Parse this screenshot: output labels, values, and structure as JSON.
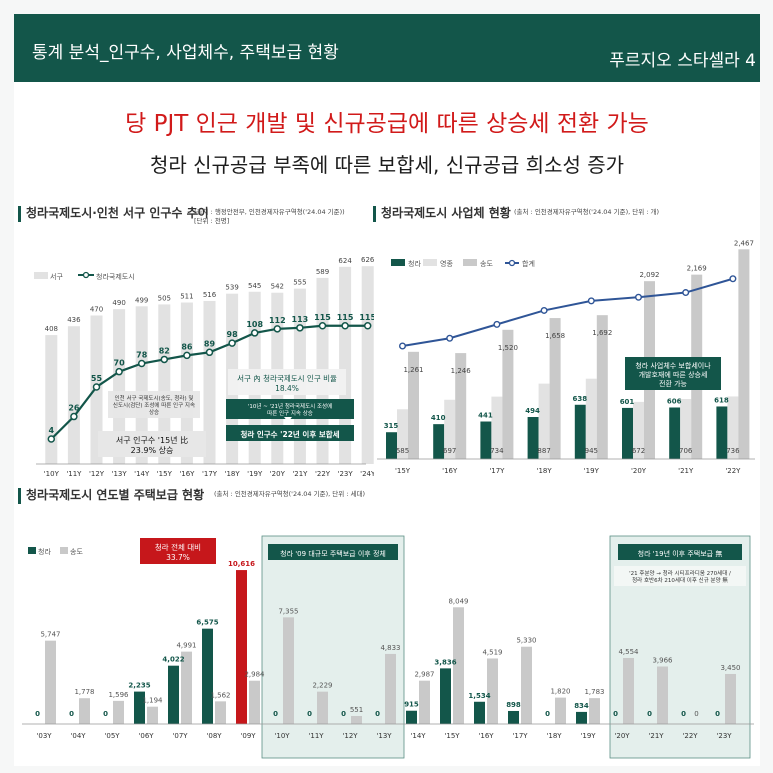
{
  "header": {
    "title": "통계 분석_인구수, 사업체수, 주택보급 현황",
    "page": "푸르지오 스타셀라 4"
  },
  "headline": {
    "main": "당 PJT 인근 개발 및 신규공급에 따른 상승세 전환 가능",
    "sub": "청라 신규공급 부족에 따른 보합세, 신규공급 희소성 증가"
  },
  "colors": {
    "dark_green": "#13564a",
    "gray_bar": "#c9c9c9",
    "light_bar": "#e2e2e2",
    "line_blue": "#2f5597",
    "red": "#c6171b"
  },
  "sections": {
    "population": {
      "title": "청라국제도시·인천 서구 인구수 추이",
      "source": "(출처 : 행정안전부, 인천경제자유구역청('24.04 기준))",
      "unit": "[단위 : 천명]"
    },
    "business": {
      "title": "청라국제도시 사업체 현황",
      "source": "(출처 : 인천경제자유구역청('24.04 기준), 단위 : 개)"
    },
    "housing": {
      "title": "청라국제도시 연도별 주택보급 현황",
      "source": "(출처 : 인천경제자유구역청('24.04 기준), 단위 : 세대)"
    }
  },
  "annotations": {
    "pop_box1": "인천 서구 국제도시(송도, 청라) 및 신도시(검단) 조성에 따른 인구 지속 상승",
    "pop_box2": "서구 인구수 '15년 比 23.9% 상승",
    "pop_box3": "서구 內 청라국제도시 인구 비율 18.4%",
    "pop_box4": "'10년 ~ '21년 청라국제도시 조성에 따른 인구 지속 상승",
    "pop_box5": "청라 인구수 '22년 이후 보합세",
    "biz_box": "청라 사업체수 보합세이나 개발호재에 따른 상승세 전환 가능",
    "red_box": "청라 전체 대비 33.7%",
    "stagnant_box": "청라 '09 대규모 주택보급 이후 정체",
    "after19_box": "청라 '19년 이후 주택보급 無",
    "after19_note": "'21 후분양 → 청라 시티프라디움 270세대 / 청라 호반6차 210세대 이후 신규 분양 無"
  },
  "chart_data": [
    {
      "type": "bar",
      "title": "청라국제도시·인천 서구 인구수 추이",
      "categories": [
        "'10Y",
        "'11Y",
        "'12Y",
        "'13Y",
        "'14Y",
        "'15Y",
        "'16Y",
        "'17Y",
        "'18Y",
        "'19Y",
        "'20Y",
        "'21Y",
        "'22Y",
        "'23Y",
        "'24Y"
      ],
      "series": [
        {
          "name": "서구",
          "type": "bar",
          "values": [
            408,
            436,
            470,
            490,
            499,
            505,
            511,
            516,
            539,
            545,
            542,
            555,
            589,
            624,
            626
          ]
        },
        {
          "name": "청라국제도시",
          "type": "line",
          "values": [
            4,
            26,
            55,
            70,
            78,
            82,
            86,
            89,
            98,
            108,
            112,
            113,
            115,
            115,
            115
          ]
        }
      ],
      "legend": "top-left"
    },
    {
      "type": "bar",
      "title": "청라국제도시 사업체 현황",
      "categories": [
        "'15Y",
        "'16Y",
        "'17Y",
        "'18Y",
        "'19Y",
        "'20Y",
        "'21Y",
        "'22Y"
      ],
      "series": [
        {
          "name": "청라",
          "type": "bar",
          "values": [
            315,
            410,
            441,
            494,
            638,
            601,
            606,
            618
          ]
        },
        {
          "name": "영종",
          "type": "bar",
          "values": [
            585,
            697,
            734,
            887,
            945,
            672,
            706,
            736
          ]
        },
        {
          "name": "송도",
          "type": "bar",
          "values": [
            1261,
            1246,
            1520,
            1658,
            1692,
            2092,
            2169,
            2467
          ]
        },
        {
          "name": "합계",
          "type": "line",
          "values": [
            2161,
            2353,
            2695,
            3039,
            3275,
            3365,
            3481,
            3821
          ]
        }
      ],
      "legend": "top-left"
    },
    {
      "type": "bar",
      "title": "청라국제도시 연도별 주택보급 현황",
      "categories": [
        "'03Y",
        "'04Y",
        "'05Y",
        "'06Y",
        "'07Y",
        "'08Y",
        "'09Y",
        "'10Y",
        "'11Y",
        "'12Y",
        "'13Y",
        "'14Y",
        "'15Y",
        "'16Y",
        "'17Y",
        "'18Y",
        "'19Y",
        "'20Y",
        "'21Y",
        "'22Y",
        "'23Y"
      ],
      "series": [
        {
          "name": "청라",
          "values": [
            0,
            0,
            0,
            2235,
            4022,
            6575,
            10616,
            0,
            0,
            0,
            0,
            915,
            3836,
            1534,
            898,
            0,
            834,
            0,
            0,
            0,
            0
          ]
        },
        {
          "name": "송도",
          "values": [
            5747,
            1778,
            1596,
            1194,
            4991,
            1562,
            2984,
            7355,
            2229,
            551,
            4833,
            2987,
            8049,
            4519,
            5330,
            1820,
            1783,
            4554,
            3966,
            0,
            3450
          ]
        }
      ],
      "legend": "top-left"
    }
  ]
}
